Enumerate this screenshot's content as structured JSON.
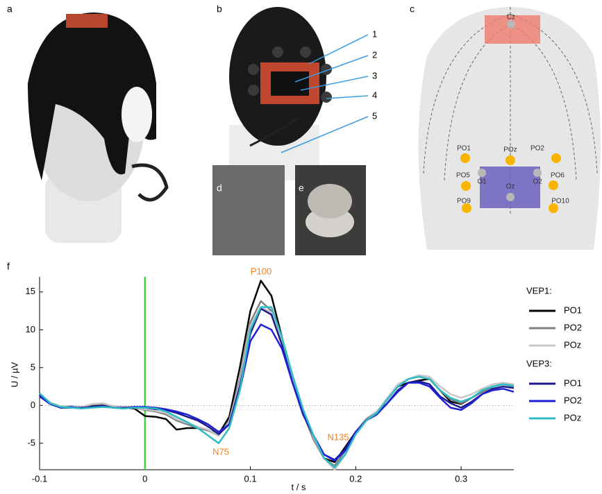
{
  "panel_labels": [
    "a",
    "b",
    "c",
    "d",
    "e",
    "f"
  ],
  "panel_b_callouts": [
    "1",
    "2",
    "3",
    "4",
    "5"
  ],
  "panel_c_electrodes": [
    "Cz",
    "PO1",
    "POz",
    "PO2",
    "PO5",
    "O1",
    "Oz",
    "O2",
    "PO6",
    "PO9",
    "PO10"
  ],
  "chart_data": {
    "type": "line",
    "xlabel": "t / s",
    "ylabel": "U / µV",
    "xlim": [
      -0.1,
      0.35
    ],
    "ylim": [
      -8.5,
      17
    ],
    "xticks": [
      -0.1,
      0,
      0.1,
      0.2,
      0.3
    ],
    "yticks": [
      -5,
      0,
      5,
      10,
      15
    ],
    "zero_line": true,
    "vline": {
      "x": 0,
      "color": "#33dd33"
    },
    "annotations": [
      "P100",
      "N75",
      "N135"
    ],
    "annotation_color": "#f07f1e",
    "x": [
      -0.1,
      -0.09,
      -0.08,
      -0.07,
      -0.06,
      -0.05,
      -0.04,
      -0.03,
      -0.02,
      -0.01,
      0,
      0.01,
      0.02,
      0.03,
      0.04,
      0.05,
      0.06,
      0.07,
      0.08,
      0.09,
      0.1,
      0.11,
      0.12,
      0.13,
      0.14,
      0.15,
      0.16,
      0.17,
      0.18,
      0.19,
      0.2,
      0.21,
      0.22,
      0.23,
      0.24,
      0.25,
      0.26,
      0.27,
      0.28,
      0.29,
      0.3,
      0.31,
      0.32,
      0.33,
      0.34,
      0.35
    ],
    "series_groups": [
      {
        "title": "VEP1:",
        "series": [
          {
            "name": "PO1",
            "color": "#000000",
            "values": [
              1.4,
              0.3,
              -0.2,
              -0.1,
              -0.3,
              0,
              0.1,
              -0.2,
              -0.3,
              -0.4,
              -1.4,
              -1.5,
              -1.8,
              -3.2,
              -3,
              -3,
              -3.3,
              -3.8,
              -1.5,
              5,
              12.5,
              16.5,
              14.5,
              9,
              3.5,
              -1,
              -4.5,
              -7,
              -7.5,
              -5.5,
              -3.5,
              -2,
              -0.8,
              0.8,
              2.5,
              3,
              3.3,
              3.5,
              2,
              0.5,
              0.2,
              1,
              1.8,
              2.5,
              2.8,
              2.8
            ]
          },
          {
            "name": "PO2",
            "color": "#808080",
            "values": [
              1.5,
              0.2,
              -0.3,
              -0.2,
              -0.2,
              0.1,
              0.2,
              -0.1,
              -0.2,
              -0.3,
              -0.6,
              -0.8,
              -1.2,
              -2,
              -2.5,
              -3,
              -3.3,
              -4,
              -2,
              3.5,
              11,
              13.8,
              12.5,
              8.5,
              3.5,
              -1,
              -4.5,
              -7,
              -8,
              -6,
              -3.5,
              -1.8,
              -0.8,
              0.8,
              2.5,
              3.5,
              3.8,
              3.5,
              2,
              0.8,
              0.3,
              1,
              1.8,
              2.5,
              2.8,
              2.5
            ]
          },
          {
            "name": "POz",
            "color": "#c8c8c8",
            "values": [
              1.6,
              0.4,
              -0.1,
              -0.1,
              -0.2,
              0.2,
              0.3,
              -0.1,
              -0.2,
              -0.3,
              -0.5,
              -0.7,
              -1,
              -1.8,
              -2.3,
              -2.8,
              -3.2,
              -4,
              -2.2,
              3,
              10.5,
              13,
              12.3,
              8.5,
              3.8,
              -0.5,
              -4.2,
              -7,
              -8.5,
              -6.5,
              -3.8,
              -2,
              -0.8,
              1,
              2.8,
              3.5,
              4,
              3.8,
              2.5,
              1.5,
              1,
              1.5,
              2.2,
              2.8,
              3,
              2.8
            ]
          }
        ]
      },
      {
        "title": "VEP3:",
        "series": [
          {
            "name": "PO1",
            "color": "#1a1a8c",
            "values": [
              1.5,
              0.2,
              -0.3,
              -0.3,
              -0.3,
              -0.2,
              -0.1,
              -0.3,
              -0.3,
              -0.2,
              -0.3,
              -0.5,
              -0.6,
              -1,
              -1.5,
              -2,
              -2.8,
              -3.8,
              -2.5,
              2.5,
              9.5,
              12.8,
              12,
              8,
              3,
              -1.2,
              -4,
              -6.5,
              -7.2,
              -5.8,
              -3.5,
              -2,
              -1,
              0.3,
              2,
              3,
              3.2,
              2.8,
              1.2,
              0.3,
              -0.3,
              0.5,
              1.5,
              2.2,
              2.5,
              2.3
            ]
          },
          {
            "name": "PO2",
            "color": "#1f1fd6",
            "values": [
              1.2,
              0.2,
              -0.3,
              -0.2,
              -0.4,
              -0.2,
              -0.1,
              -0.3,
              -0.4,
              -0.2,
              -0.2,
              -0.3,
              -0.5,
              -0.8,
              -1.2,
              -1.8,
              -2.5,
              -3.5,
              -2.5,
              2,
              8.5,
              10.7,
              10,
              7.5,
              3,
              -1,
              -4,
              -6.5,
              -7.3,
              -6,
              -3.5,
              -2,
              -1.2,
              0.3,
              1.8,
              3,
              3,
              2.5,
              1,
              -0.3,
              -0.6,
              0.3,
              1.5,
              2,
              2.2,
              1.8
            ]
          },
          {
            "name": "POz",
            "color": "#2cbcc4",
            "values": [
              1.6,
              0.3,
              -0.2,
              -0.3,
              -0.4,
              -0.3,
              -0.2,
              -0.3,
              -0.4,
              -0.3,
              -0.3,
              -0.4,
              -0.8,
              -1.5,
              -2.2,
              -3,
              -4,
              -5,
              -3,
              2,
              10,
              13,
              13,
              9,
              4,
              -0.5,
              -4,
              -7,
              -8.2,
              -6.5,
              -3.8,
              -2,
              -1,
              0.8,
              2.5,
              3.5,
              3.8,
              3.5,
              2,
              1,
              0.5,
              1,
              2,
              2.5,
              2.8,
              2.6
            ]
          }
        ]
      }
    ]
  }
}
